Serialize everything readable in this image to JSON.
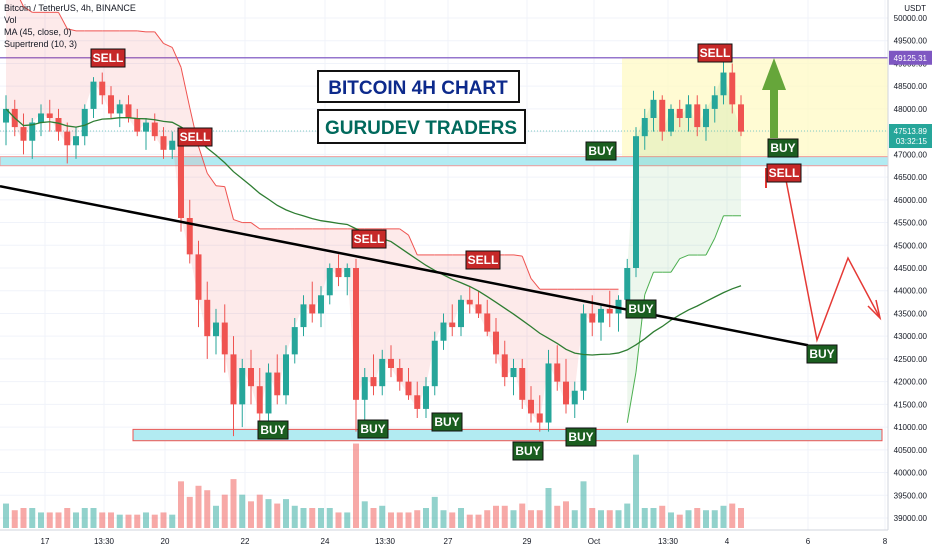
{
  "legend": {
    "symbol": "Bitcoin / TetherUS, 4h, BINANCE",
    "vol": "Vol",
    "ma": "MA (45, close, 0)",
    "supertrend": "Supertrend (10, 3)"
  },
  "titles": {
    "main": "BITCOIN 4H CHART",
    "sub": "GURUDEV TRADERS"
  },
  "price_axis": {
    "currency": "USDT",
    "tick_labels": [
      "50000.00",
      "49500.00",
      "49000.00",
      "48500.00",
      "48000.00",
      "47500.00",
      "47000.00",
      "46500.00",
      "46000.00",
      "45500.00",
      "45000.00",
      "44500.00",
      "44000.00",
      "43500.00",
      "43000.00",
      "42500.00",
      "42000.00",
      "41500.00",
      "41000.00",
      "40500.00",
      "40000.00",
      "39500.00",
      "39000.00"
    ],
    "resistance_label": "49125.31",
    "current_price_label": "47513.89",
    "countdown_label": "03:32:15"
  },
  "time_axis": {
    "labels": [
      "17",
      "13:30",
      "20",
      "22",
      "24",
      "13:30",
      "27",
      "29",
      "Oct",
      "13:30",
      "4",
      "6",
      "8"
    ]
  },
  "colors": {
    "up": "#26a69a",
    "down": "#ef5350",
    "ma": "#2e7d32",
    "trendline": "#000000",
    "resistance": "#9575cd",
    "support_zone": "#b2ebf2",
    "buy_label": "#1b5e20",
    "sell_label": "#c62828",
    "title_main": "#0d2a8c",
    "title_sub": "#00695c"
  },
  "annotations": {
    "buy": [
      "BUY",
      "BUY",
      "BUY",
      "BUY",
      "BUY",
      "BUY",
      "BUY",
      "BUY"
    ],
    "sell": [
      "SELL",
      "SELL",
      "SELL",
      "SELL",
      "SELL",
      "SELL"
    ]
  },
  "chart_data": {
    "type": "candlestick",
    "ylim": [
      38700,
      50300
    ],
    "resistance_level": 49125.31,
    "current_price": 47513.89,
    "support_zone": [
      40700,
      40950
    ],
    "upper_zone": [
      46750,
      46950
    ],
    "series": [
      {
        "name": "Bitcoin / TetherUS",
        "ohlc": [
          [
            47700,
            48300,
            47200,
            48000
          ],
          [
            48000,
            48200,
            47400,
            47600
          ],
          [
            47600,
            47900,
            47000,
            47300
          ],
          [
            47300,
            47800,
            46900,
            47700
          ],
          [
            47700,
            48100,
            47400,
            47900
          ],
          [
            47900,
            48200,
            47500,
            47800
          ],
          [
            47800,
            48000,
            47300,
            47500
          ],
          [
            47500,
            47700,
            46800,
            47200
          ],
          [
            47200,
            47600,
            46900,
            47400
          ],
          [
            47400,
            48100,
            47200,
            48000
          ],
          [
            48000,
            48700,
            47800,
            48600
          ],
          [
            48600,
            48800,
            48100,
            48300
          ],
          [
            48300,
            48500,
            47800,
            47900
          ],
          [
            47900,
            48200,
            47600,
            48100
          ],
          [
            48100,
            48300,
            47700,
            47800
          ],
          [
            47800,
            48000,
            47400,
            47500
          ],
          [
            47500,
            47800,
            47100,
            47700
          ],
          [
            47700,
            47900,
            47300,
            47400
          ],
          [
            47400,
            47600,
            46900,
            47100
          ],
          [
            47100,
            47500,
            46900,
            47300
          ],
          [
            47300,
            47400,
            45300,
            45600
          ],
          [
            45600,
            46000,
            44600,
            44800
          ],
          [
            44800,
            45100,
            43200,
            43800
          ],
          [
            43800,
            44200,
            42500,
            43000
          ],
          [
            43000,
            43600,
            42600,
            43300
          ],
          [
            43300,
            43700,
            42200,
            42600
          ],
          [
            42600,
            43000,
            40800,
            41500
          ],
          [
            41500,
            42500,
            41000,
            42300
          ],
          [
            42300,
            42700,
            41500,
            41900
          ],
          [
            41900,
            42300,
            40800,
            41300
          ],
          [
            41300,
            42400,
            41100,
            42200
          ],
          [
            42200,
            42600,
            41500,
            41700
          ],
          [
            41700,
            42800,
            41500,
            42600
          ],
          [
            42600,
            43400,
            42400,
            43200
          ],
          [
            43200,
            43900,
            43000,
            43700
          ],
          [
            43700,
            44200,
            43300,
            43500
          ],
          [
            43500,
            44100,
            43200,
            43900
          ],
          [
            43900,
            44600,
            43700,
            44500
          ],
          [
            44500,
            44800,
            44100,
            44300
          ],
          [
            44300,
            44600,
            43900,
            44500
          ],
          [
            44500,
            44700,
            40900,
            41600
          ],
          [
            41600,
            42300,
            41100,
            42100
          ],
          [
            42100,
            42600,
            41700,
            41900
          ],
          [
            41900,
            42700,
            41700,
            42500
          ],
          [
            42500,
            42800,
            42100,
            42300
          ],
          [
            42300,
            42500,
            41800,
            42000
          ],
          [
            42000,
            42300,
            41600,
            41700
          ],
          [
            41700,
            42000,
            41200,
            41400
          ],
          [
            41400,
            42100,
            41200,
            41900
          ],
          [
            41900,
            43100,
            41700,
            42900
          ],
          [
            42900,
            43500,
            42700,
            43300
          ],
          [
            43300,
            43700,
            43000,
            43200
          ],
          [
            43200,
            43900,
            43000,
            43800
          ],
          [
            43800,
            44100,
            43500,
            43700
          ],
          [
            43700,
            44000,
            43400,
            43500
          ],
          [
            43500,
            43800,
            43000,
            43100
          ],
          [
            43100,
            43400,
            42400,
            42600
          ],
          [
            42600,
            42900,
            41900,
            42100
          ],
          [
            42100,
            42500,
            41700,
            42300
          ],
          [
            42300,
            42500,
            41400,
            41600
          ],
          [
            41600,
            41900,
            41100,
            41300
          ],
          [
            41300,
            41700,
            40900,
            41100
          ],
          [
            41100,
            42700,
            40900,
            42400
          ],
          [
            42400,
            42800,
            41800,
            42000
          ],
          [
            42000,
            42500,
            41300,
            41500
          ],
          [
            41500,
            42000,
            41200,
            41800
          ],
          [
            41800,
            43700,
            41600,
            43500
          ],
          [
            43500,
            43900,
            43000,
            43300
          ],
          [
            43300,
            43700,
            42900,
            43600
          ],
          [
            43600,
            44000,
            43200,
            43500
          ],
          [
            43500,
            43900,
            43100,
            43800
          ],
          [
            43800,
            44700,
            43600,
            44500
          ],
          [
            44500,
            47600,
            44300,
            47400
          ],
          [
            47400,
            48000,
            47100,
            47800
          ],
          [
            47800,
            48400,
            47500,
            48200
          ],
          [
            48200,
            48300,
            47300,
            47500
          ],
          [
            47500,
            48100,
            47400,
            48000
          ],
          [
            48000,
            48200,
            47600,
            47800
          ],
          [
            47800,
            48300,
            47500,
            48100
          ],
          [
            48100,
            48300,
            47400,
            47600
          ],
          [
            47600,
            48100,
            47300,
            48000
          ],
          [
            48000,
            48500,
            47700,
            48300
          ],
          [
            48300,
            49100,
            48100,
            48800
          ],
          [
            48800,
            49000,
            47900,
            48100
          ],
          [
            48100,
            48300,
            47400,
            47500
          ]
        ]
      }
    ],
    "moving_average": {
      "name": "MA (45, close, 0)"
    },
    "supertrend": {
      "name": "Supertrend (10, 3)"
    },
    "xlabel": "",
    "ylabel": ""
  }
}
